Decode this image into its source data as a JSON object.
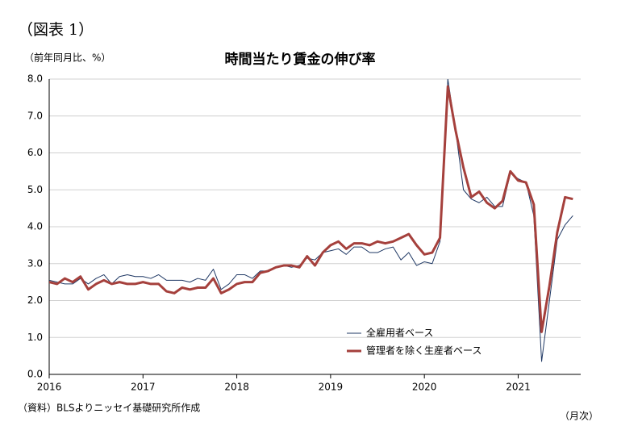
{
  "chart_data": {
    "type": "line",
    "figure_label": "（図表 1）",
    "title": "時間当たり賃金の伸び率",
    "y_axis_label": "（前年同月比、%）",
    "x_axis_label": "（月次）",
    "source": "（資料）BLSよりニッセイ基礎研究所作成",
    "categories": [
      "2016",
      null,
      null,
      null,
      null,
      null,
      null,
      null,
      null,
      null,
      null,
      null,
      "2017",
      null,
      null,
      null,
      null,
      null,
      null,
      null,
      null,
      null,
      null,
      null,
      "2018",
      null,
      null,
      null,
      null,
      null,
      null,
      null,
      null,
      null,
      null,
      null,
      "2019",
      null,
      null,
      null,
      null,
      null,
      null,
      null,
      null,
      null,
      null,
      null,
      "2020",
      null,
      null,
      null,
      null,
      null,
      null,
      null,
      null,
      null,
      null,
      null,
      "2021",
      null,
      null,
      null,
      null,
      null,
      null,
      null
    ],
    "series": [
      {
        "name": "全雇用者ベース",
        "color": "#1f3864",
        "width": 1,
        "values": [
          2.55,
          2.5,
          2.45,
          2.45,
          2.6,
          2.45,
          2.6,
          2.7,
          2.45,
          2.65,
          2.7,
          2.65,
          2.65,
          2.6,
          2.7,
          2.55,
          2.55,
          2.55,
          2.5,
          2.6,
          2.55,
          2.85,
          2.3,
          2.45,
          2.7,
          2.7,
          2.6,
          2.8,
          2.8,
          2.9,
          2.95,
          2.9,
          2.95,
          3.15,
          3.1,
          3.3,
          3.35,
          3.4,
          3.25,
          3.45,
          3.45,
          3.3,
          3.3,
          3.4,
          3.45,
          3.1,
          3.3,
          2.95,
          3.05,
          3.0,
          3.6,
          8.0,
          6.6,
          5.0,
          4.75,
          4.65,
          4.8,
          4.55,
          4.55,
          5.45,
          5.3,
          5.2,
          4.3,
          0.35,
          2.0,
          3.65,
          4.05,
          4.3
        ]
      },
      {
        "name": "管理者を除く生産者ベース",
        "color": "#a5403c",
        "width": 3,
        "values": [
          2.5,
          2.45,
          2.6,
          2.5,
          2.65,
          2.3,
          2.45,
          2.55,
          2.45,
          2.5,
          2.45,
          2.45,
          2.5,
          2.45,
          2.45,
          2.25,
          2.2,
          2.35,
          2.3,
          2.35,
          2.35,
          2.6,
          2.2,
          2.3,
          2.45,
          2.5,
          2.5,
          2.75,
          2.8,
          2.9,
          2.95,
          2.95,
          2.9,
          3.2,
          2.95,
          3.3,
          3.5,
          3.6,
          3.4,
          3.55,
          3.55,
          3.5,
          3.6,
          3.55,
          3.6,
          3.7,
          3.8,
          3.5,
          3.25,
          3.3,
          3.7,
          7.8,
          6.6,
          5.6,
          4.8,
          4.95,
          4.65,
          4.5,
          4.7,
          5.5,
          5.25,
          5.2,
          4.6,
          1.15,
          2.4,
          3.85,
          4.8,
          4.75
        ]
      }
    ],
    "ylim": [
      0,
      8
    ],
    "yticks": [
      {
        "value": 0,
        "label": "0.0"
      },
      {
        "value": 1,
        "label": "1.0"
      },
      {
        "value": 2,
        "label": "2.0"
      },
      {
        "value": 3,
        "label": "3.0"
      },
      {
        "value": 4,
        "label": "4.0"
      },
      {
        "value": 5,
        "label": "5.0"
      },
      {
        "value": 6,
        "label": "6.0"
      },
      {
        "value": 7,
        "label": "7.0"
      },
      {
        "value": 8,
        "label": "8.0"
      }
    ],
    "grid": true,
    "legend": "lower right"
  }
}
